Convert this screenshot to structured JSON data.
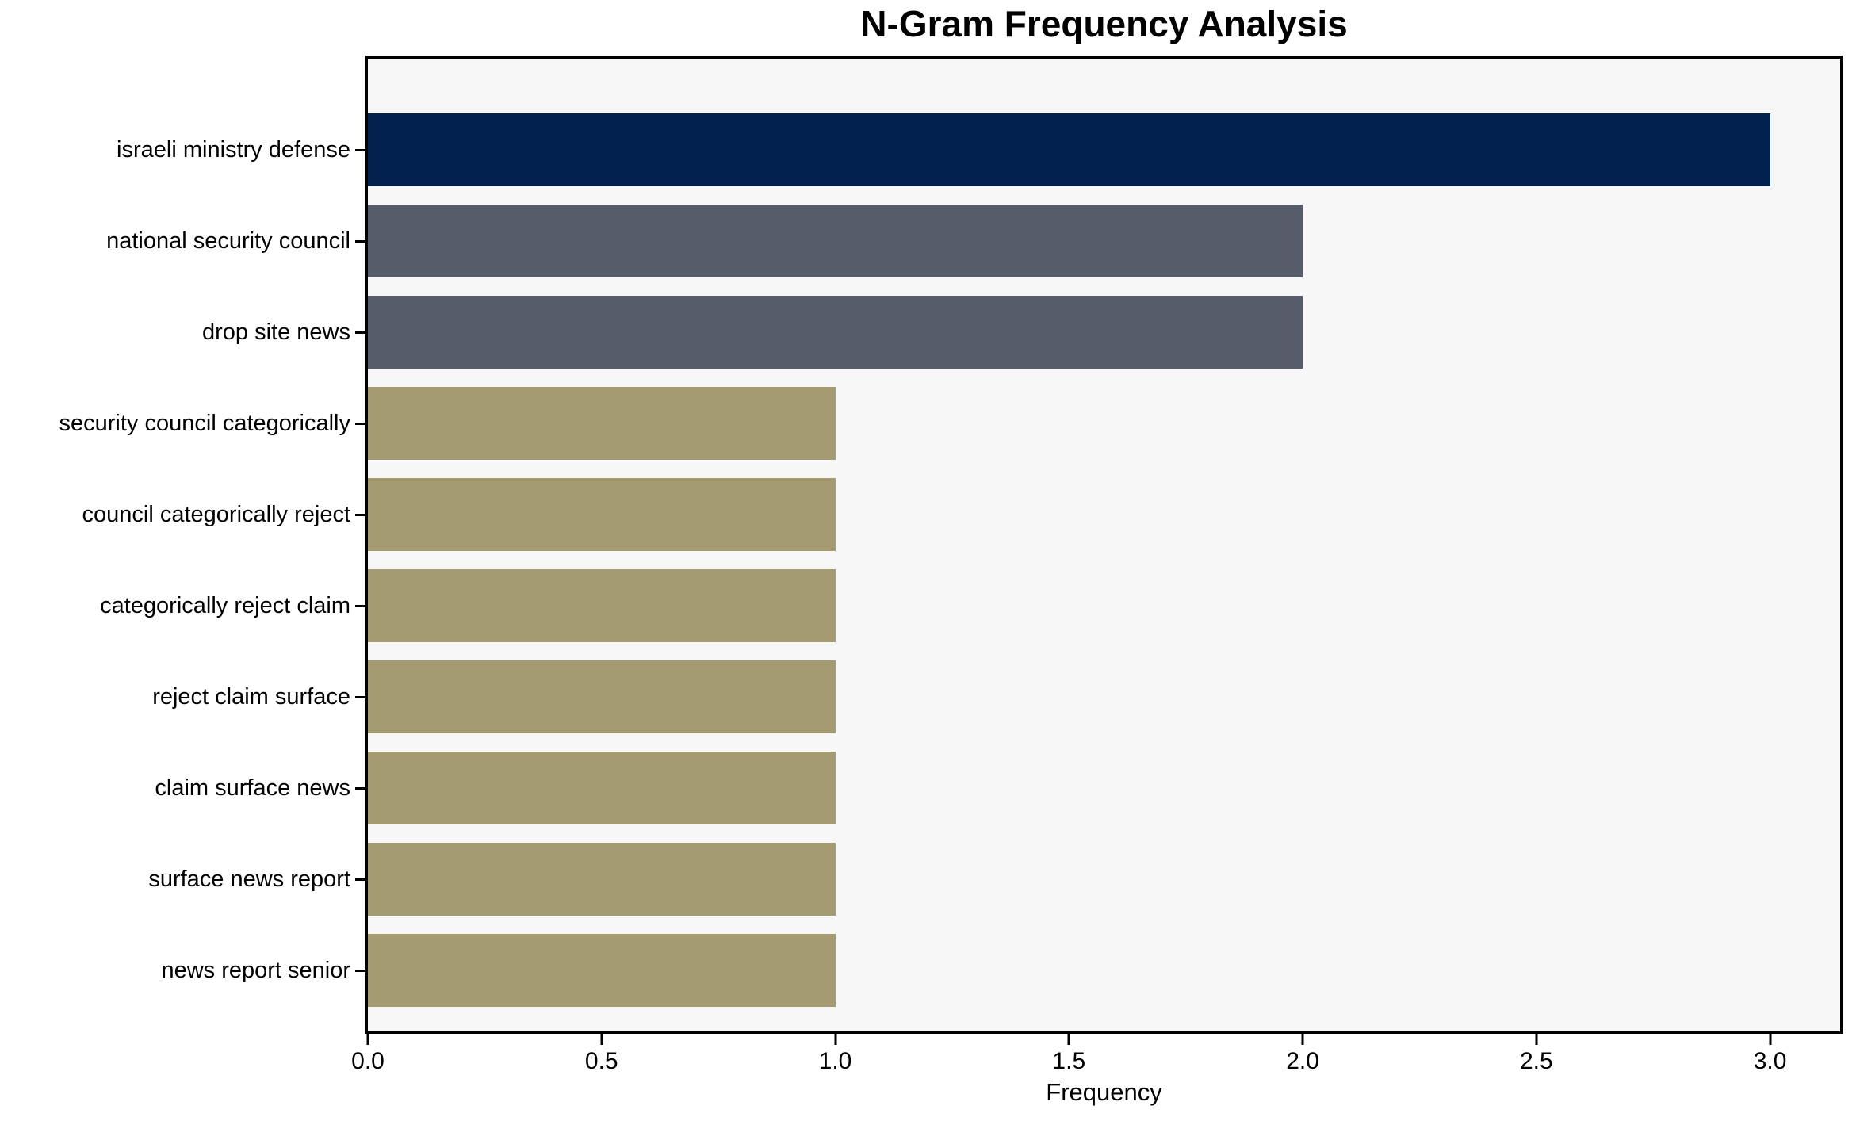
{
  "chart_data": {
    "type": "bar",
    "orientation": "horizontal",
    "title": "N-Gram Frequency Analysis",
    "xlabel": "Frequency",
    "ylabel": "",
    "categories": [
      "israeli ministry defense",
      "national security council",
      "drop site news",
      "security council categorically",
      "council categorically reject",
      "categorically reject claim",
      "reject claim surface",
      "claim surface news",
      "surface news report",
      "news report senior"
    ],
    "values": [
      3,
      2,
      2,
      1,
      1,
      1,
      1,
      1,
      1,
      1
    ],
    "bar_colors": [
      "#02224d",
      "#575c6b",
      "#575c6b",
      "#a49b70",
      "#a49b70",
      "#a49b70",
      "#a49b70",
      "#a49b70",
      "#a49b70",
      "#a49b70"
    ],
    "xlim": [
      0,
      3.15
    ],
    "xticks": [
      0,
      0.5,
      1.0,
      1.5,
      2.0,
      2.5,
      3.0
    ],
    "xtick_labels": [
      "0.0",
      "0.5",
      "1.0",
      "1.5",
      "2.0",
      "2.5",
      "3.0"
    ],
    "grid": false,
    "legend": false,
    "plot_background": "#f7f7f8",
    "figure_background": "#ffffff",
    "spine_color": "#000000",
    "text_color": "#000000"
  }
}
